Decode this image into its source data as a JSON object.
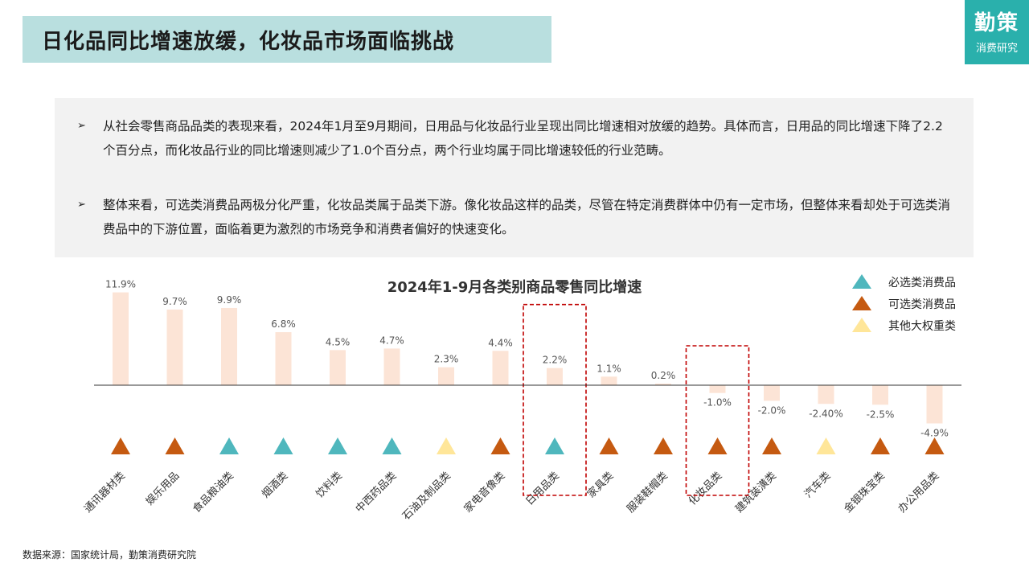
{
  "header": {
    "title": "日化品同比增速放缓，化妆品市场面临挑战"
  },
  "logo": {
    "main": "勤策",
    "sub": "消费研究"
  },
  "summary": {
    "bullet_mark": "➢",
    "points": [
      "从社会零售商品品类的表现来看，2024年1月至9月期间，日用品与化妆品行业呈现出同比增速相对放缓的趋势。具体而言，日用品的同比增速下降了2.2个百分点，而化妆品行业的同比增速则减少了1.0个百分点，两个行业均属于同比增速较低的行业范畴。",
      "整体来看，可选类消费品两极分化严重，化妆品类属于品类下游。像化妆品这样的品类，尽管在特定消费群体中仍有一定市场，但整体来看却处于可选类消费品中的下游位置，面临着更为激烈的市场竞争和消费者偏好的快速变化。"
    ]
  },
  "chart_data": {
    "type": "bar",
    "title": "2024年1-9月各类别商品零售同比增速",
    "xlabel": "",
    "ylabel": "",
    "categories": [
      "通讯器材类",
      "娱乐用品",
      "食品粮油类",
      "烟酒类",
      "饮料类",
      "中西药品类",
      "石油及制品类",
      "家电音像类",
      "日用品类",
      "家具类",
      "服装鞋帽类",
      "化妆品类",
      "建筑装潢类",
      "汽车类",
      "金银珠宝类",
      "办公用品类"
    ],
    "values": [
      11.9,
      9.7,
      9.9,
      6.8,
      4.5,
      4.7,
      2.3,
      4.4,
      2.2,
      1.1,
      0.2,
      -1.0,
      -2.0,
      -2.4,
      -2.5,
      -4.9
    ],
    "value_labels": [
      "11.9%",
      "9.7%",
      "9.9%",
      "6.8%",
      "4.5%",
      "4.7%",
      "2.3%",
      "4.4%",
      "2.2%",
      "1.1%",
      "0.2%",
      "-1.0%",
      "-2.0%",
      "-2.40%",
      "-2.5%",
      "-4.9%"
    ],
    "category_group": [
      "optional",
      "optional",
      "essential",
      "essential",
      "essential",
      "essential",
      "bulk",
      "optional",
      "essential",
      "optional",
      "optional",
      "optional",
      "optional",
      "bulk",
      "optional",
      "optional"
    ],
    "legend": {
      "position": "top-right",
      "items": [
        {
          "key": "essential",
          "label": "必选类消费品",
          "color": "#4fb7bd"
        },
        {
          "key": "optional",
          "label": "可选类消费品",
          "color": "#c55a11"
        },
        {
          "key": "bulk",
          "label": "其他大权重类",
          "color": "#ffe699"
        }
      ]
    },
    "highlighted_categories": [
      "日用品类",
      "化妆品类"
    ],
    "bar_color": "#fce4d6",
    "highlight_box_color": "#c00000",
    "ylim": [
      -5,
      12
    ],
    "grid": false
  },
  "footer": {
    "source": "数据来源：国家统计局，勤策消费研究院"
  }
}
